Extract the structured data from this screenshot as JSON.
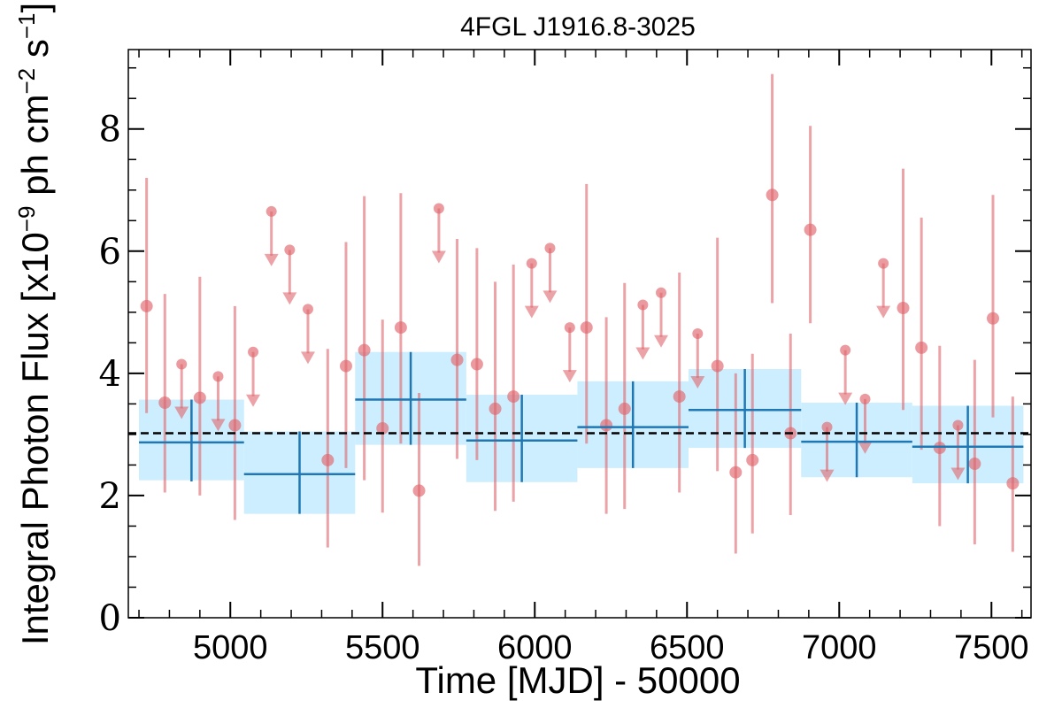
{
  "chart_data": {
    "type": "scatter",
    "title": "4FGL J1916.8-3025",
    "xlabel": "Time [MJD] - 50000",
    "ylabel": "Integral Photon Flux [x10",
    "ylabel_exp": "−9",
    "ylabel_mid": " ph cm",
    "ylabel_exp2": "−2",
    "ylabel_mid2": " s",
    "ylabel_exp3": "−1",
    "ylabel_end": "]",
    "xlim": [
      4665,
      7630
    ],
    "ylim": [
      0,
      9.3
    ],
    "x_ticks": [
      5000,
      5500,
      6000,
      6500,
      7000,
      7500
    ],
    "x_tick_labels": [
      "5000",
      "5500",
      "6000",
      "6500",
      "7000",
      "7500"
    ],
    "y_ticks": [
      0,
      2,
      4,
      6,
      8
    ],
    "y_tick_labels": [
      "0",
      "2",
      "4",
      "6",
      "8"
    ],
    "mean_flux": 3.02,
    "colors": {
      "points": "#e0666c",
      "bars": "#1f77b4",
      "band": "#cdeefe",
      "mean_line": "#000000"
    },
    "series": [
      {
        "kind": "short_bins_detections",
        "points": [
          {
            "x": 4725,
            "y": 5.1,
            "lo": 3.35,
            "hi": 7.2
          },
          {
            "x": 4785,
            "y": 3.52,
            "lo": 2.05,
            "hi": 5.3
          },
          {
            "x": 4900,
            "y": 3.6,
            "lo": 2.0,
            "hi": 5.58
          },
          {
            "x": 5015,
            "y": 3.15,
            "lo": 1.6,
            "hi": 5.1
          },
          {
            "x": 5320,
            "y": 2.58,
            "lo": 1.15,
            "hi": 4.4
          },
          {
            "x": 5380,
            "y": 4.12,
            "lo": 2.45,
            "hi": 6.15
          },
          {
            "x": 5440,
            "y": 4.38,
            "lo": 2.25,
            "hi": 6.9
          },
          {
            "x": 5500,
            "y": 3.1,
            "lo": 1.72,
            "hi": 4.88
          },
          {
            "x": 5560,
            "y": 4.75,
            "lo": 2.85,
            "hi": 6.95
          },
          {
            "x": 5620,
            "y": 2.08,
            "lo": 0.85,
            "hi": 3.68
          },
          {
            "x": 5745,
            "y": 4.22,
            "lo": 2.6,
            "hi": 6.2
          },
          {
            "x": 5810,
            "y": 4.15,
            "lo": 2.58,
            "hi": 6.05
          },
          {
            "x": 5870,
            "y": 3.42,
            "lo": 1.75,
            "hi": 5.5
          },
          {
            "x": 5930,
            "y": 3.62,
            "lo": 1.9,
            "hi": 5.78
          },
          {
            "x": 6170,
            "y": 4.75,
            "lo": 2.85,
            "hi": 7.1
          },
          {
            "x": 6235,
            "y": 3.15,
            "lo": 1.7,
            "hi": 4.92
          },
          {
            "x": 6295,
            "y": 3.42,
            "lo": 1.78,
            "hi": 5.48
          },
          {
            "x": 6475,
            "y": 3.62,
            "lo": 2.05,
            "hi": 5.65
          },
          {
            "x": 6600,
            "y": 4.12,
            "lo": 2.4,
            "hi": 6.22
          },
          {
            "x": 6660,
            "y": 2.38,
            "lo": 1.05,
            "hi": 4.0
          },
          {
            "x": 6715,
            "y": 2.58,
            "lo": 1.38,
            "hi": 4.32
          },
          {
            "x": 6780,
            "y": 6.92,
            "lo": 5.15,
            "hi": 8.9
          },
          {
            "x": 6840,
            "y": 3.02,
            "lo": 1.68,
            "hi": 4.65
          },
          {
            "x": 6905,
            "y": 6.35,
            "lo": 4.82,
            "hi": 8.05
          },
          {
            "x": 7210,
            "y": 5.07,
            "lo": 3.4,
            "hi": 7.35
          },
          {
            "x": 7270,
            "y": 4.42,
            "lo": 2.75,
            "hi": 6.55
          },
          {
            "x": 7330,
            "y": 2.78,
            "lo": 1.5,
            "hi": 4.45
          },
          {
            "x": 7445,
            "y": 2.52,
            "lo": 1.2,
            "hi": 4.22
          },
          {
            "x": 7505,
            "y": 4.9,
            "lo": 3.28,
            "hi": 6.92
          },
          {
            "x": 7570,
            "y": 2.2,
            "lo": 1.08,
            "hi": 3.62
          }
        ]
      },
      {
        "kind": "short_bins_upper_limits",
        "points": [
          {
            "x": 4840,
            "y": 4.15
          },
          {
            "x": 4960,
            "y": 3.95
          },
          {
            "x": 5075,
            "y": 4.35
          },
          {
            "x": 5135,
            "y": 6.65
          },
          {
            "x": 5195,
            "y": 6.02
          },
          {
            "x": 5255,
            "y": 5.05
          },
          {
            "x": 5685,
            "y": 6.7
          },
          {
            "x": 5990,
            "y": 5.8
          },
          {
            "x": 6050,
            "y": 6.05
          },
          {
            "x": 6115,
            "y": 4.75
          },
          {
            "x": 6355,
            "y": 5.12
          },
          {
            "x": 6415,
            "y": 5.32
          },
          {
            "x": 6535,
            "y": 4.65
          },
          {
            "x": 6960,
            "y": 3.12
          },
          {
            "x": 7020,
            "y": 4.38
          },
          {
            "x": 7085,
            "y": 3.58
          },
          {
            "x": 7145,
            "y": 5.8
          },
          {
            "x": 7390,
            "y": 3.15
          }
        ]
      },
      {
        "kind": "long_bins",
        "bins": [
          {
            "x0": 4700,
            "x1": 5045,
            "y": 2.87,
            "lo": 2.23,
            "hi": 3.57,
            "band_lo": 2.25,
            "band_hi": 3.57
          },
          {
            "x0": 5045,
            "x1": 5410,
            "y": 2.35,
            "lo": 1.7,
            "hi": 3.05,
            "band_lo": 1.7,
            "band_hi": 3.05
          },
          {
            "x0": 5410,
            "x1": 5775,
            "y": 3.57,
            "lo": 2.83,
            "hi": 4.35,
            "band_lo": 2.83,
            "band_hi": 4.35
          },
          {
            "x0": 5775,
            "x1": 6140,
            "y": 2.9,
            "lo": 2.22,
            "hi": 3.65,
            "band_lo": 2.22,
            "band_hi": 3.65
          },
          {
            "x0": 6140,
            "x1": 6505,
            "y": 3.12,
            "lo": 2.45,
            "hi": 3.87,
            "band_lo": 2.45,
            "band_hi": 3.87
          },
          {
            "x0": 6505,
            "x1": 6875,
            "y": 3.4,
            "lo": 2.78,
            "hi": 4.07,
            "band_lo": 2.78,
            "band_hi": 4.07
          },
          {
            "x0": 6875,
            "x1": 7240,
            "y": 2.88,
            "lo": 2.3,
            "hi": 3.52,
            "band_lo": 2.3,
            "band_hi": 3.52
          },
          {
            "x0": 7240,
            "x1": 7605,
            "y": 2.8,
            "lo": 2.2,
            "hi": 3.47,
            "band_lo": 2.2,
            "band_hi": 3.47
          }
        ]
      }
    ]
  }
}
